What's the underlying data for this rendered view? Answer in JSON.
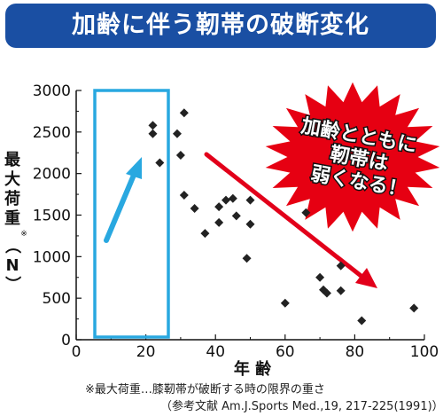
{
  "header": {
    "title": "加齢に伴う靭帯の破断変化"
  },
  "footnote": {
    "line1": "※最大荷重…膝靭帯が破断する時の限界の重さ",
    "line2": "（参考文献 Am.J.Sports Med.,19, 217-225(1991)）"
  },
  "callout": {
    "line1": "加齢とともに",
    "line2": "靭帯は",
    "line3": "弱くなる！"
  },
  "colors": {
    "banner": "#1a4fa3",
    "highlight": "#29a8e0",
    "trend_arrow": "#e2001a",
    "burst": "#e60012",
    "points": "#222222"
  },
  "chart_data": {
    "type": "scatter",
    "title": "",
    "xlabel": "年 齢",
    "ylabel": "最大荷重※（N）",
    "xlim": [
      0,
      100
    ],
    "ylim": [
      0,
      3000
    ],
    "xticks": [
      "0",
      "20",
      "40",
      "60",
      "80",
      "100"
    ],
    "yticks": [
      "0",
      "500",
      "1000",
      "1500",
      "2000",
      "2500",
      "3000"
    ],
    "grid": false,
    "points": [
      {
        "x": 22,
        "y": 2580
      },
      {
        "x": 22,
        "y": 2480
      },
      {
        "x": 24,
        "y": 2130
      },
      {
        "x": 29,
        "y": 2480
      },
      {
        "x": 30,
        "y": 2220
      },
      {
        "x": 31,
        "y": 2730
      },
      {
        "x": 31,
        "y": 1740
      },
      {
        "x": 34,
        "y": 1580
      },
      {
        "x": 37,
        "y": 1280
      },
      {
        "x": 41,
        "y": 1600
      },
      {
        "x": 41,
        "y": 1410
      },
      {
        "x": 43,
        "y": 1680
      },
      {
        "x": 45,
        "y": 1700
      },
      {
        "x": 46,
        "y": 1490
      },
      {
        "x": 50,
        "y": 1680
      },
      {
        "x": 50,
        "y": 1390
      },
      {
        "x": 49,
        "y": 980
      },
      {
        "x": 66,
        "y": 1530
      },
      {
        "x": 60,
        "y": 440
      },
      {
        "x": 70,
        "y": 750
      },
      {
        "x": 71,
        "y": 600
      },
      {
        "x": 72,
        "y": 560
      },
      {
        "x": 76,
        "y": 590
      },
      {
        "x": 76,
        "y": 890
      },
      {
        "x": 82,
        "y": 230
      },
      {
        "x": 97,
        "y": 380
      }
    ]
  }
}
